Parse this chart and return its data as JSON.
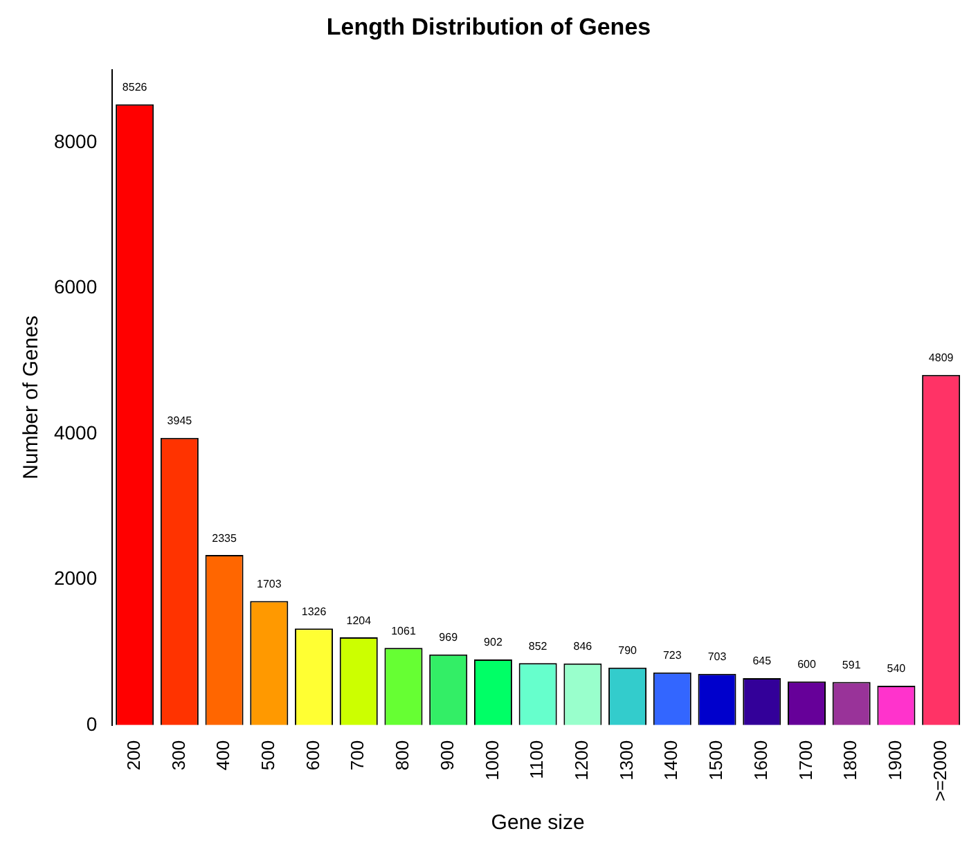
{
  "chart_data": {
    "type": "bar",
    "title": "Length Distribution of Genes",
    "xlabel": "Gene size",
    "ylabel": "Number of Genes",
    "categories": [
      "200",
      "300",
      "400",
      "500",
      "600",
      "700",
      "800",
      "900",
      "1000",
      "1100",
      "1200",
      "1300",
      "1400",
      "1500",
      "1600",
      "1700",
      "1800",
      "1900",
      ">=2000"
    ],
    "values": [
      8526,
      3945,
      2335,
      1703,
      1326,
      1204,
      1061,
      969,
      902,
      852,
      846,
      790,
      723,
      703,
      645,
      600,
      591,
      540,
      4809
    ],
    "colors": [
      "#ff0000",
      "#ff3300",
      "#ff6600",
      "#ff9900",
      "#ffff33",
      "#ccff00",
      "#66ff33",
      "#33ee66",
      "#00ff66",
      "#66ffcc",
      "#99ffcc",
      "#33cccc",
      "#3366ff",
      "#0000cc",
      "#330099",
      "#660099",
      "#993399",
      "#ff33cc",
      "#ff3366"
    ],
    "ylim": [
      0,
      9000
    ],
    "yticks": [
      0,
      2000,
      4000,
      6000,
      8000
    ],
    "grid": false,
    "legend": false,
    "data_labels": true
  }
}
